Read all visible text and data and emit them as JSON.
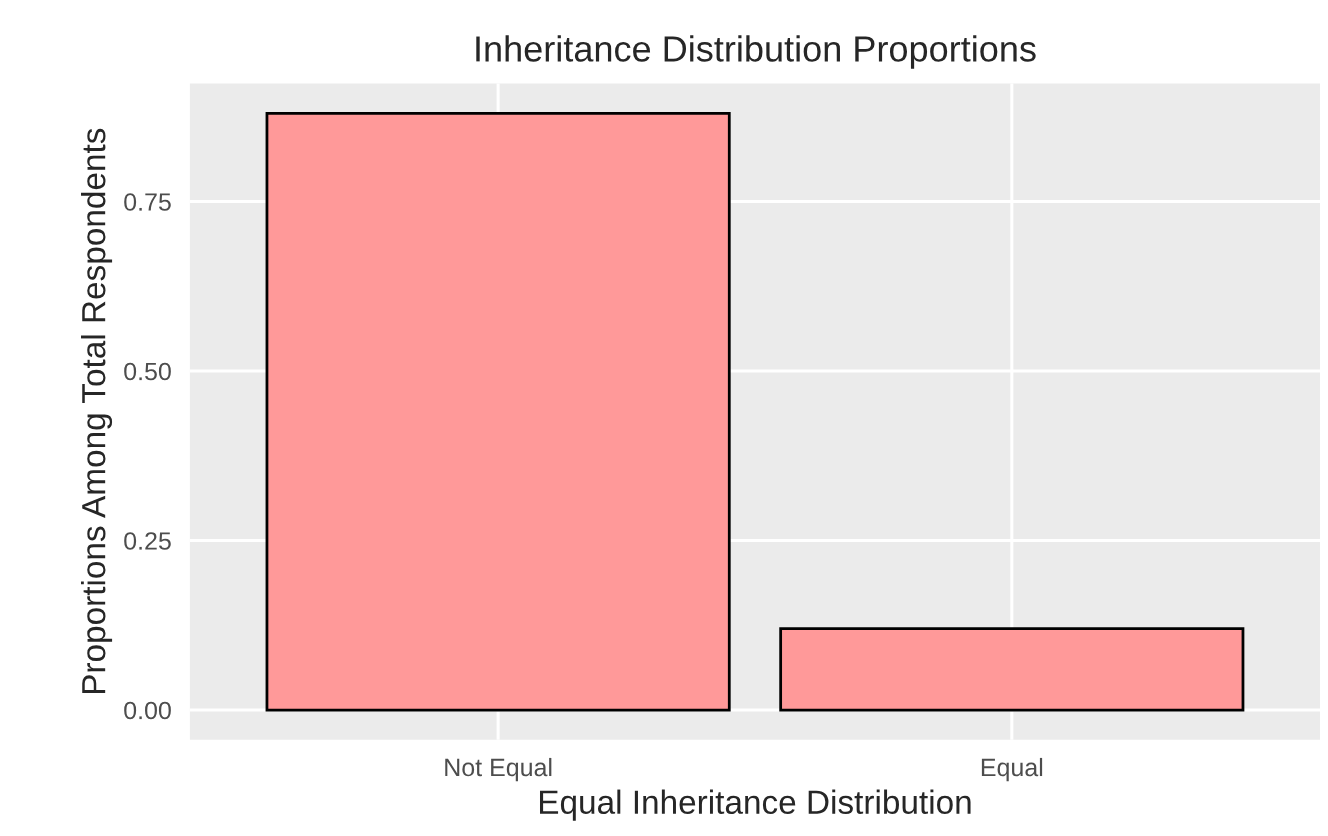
{
  "chart_data": {
    "type": "bar",
    "title": "Inheritance Distribution Proportions",
    "xlabel": "Equal Inheritance Distribution",
    "ylabel": "Proportions Among Total Respondents",
    "categories": [
      "Not Equal",
      "Equal"
    ],
    "values": [
      0.88,
      0.12
    ],
    "color": "#ff9999",
    "ylim": [
      -0.044,
      0.924
    ],
    "yticks": [
      {
        "value": 0,
        "label": "0.00"
      },
      {
        "value": 0.25,
        "label": "0.25"
      },
      {
        "value": 0.5,
        "label": "0.50"
      },
      {
        "value": 0.75,
        "label": "0.75"
      }
    ],
    "grid": true,
    "legend": false
  }
}
